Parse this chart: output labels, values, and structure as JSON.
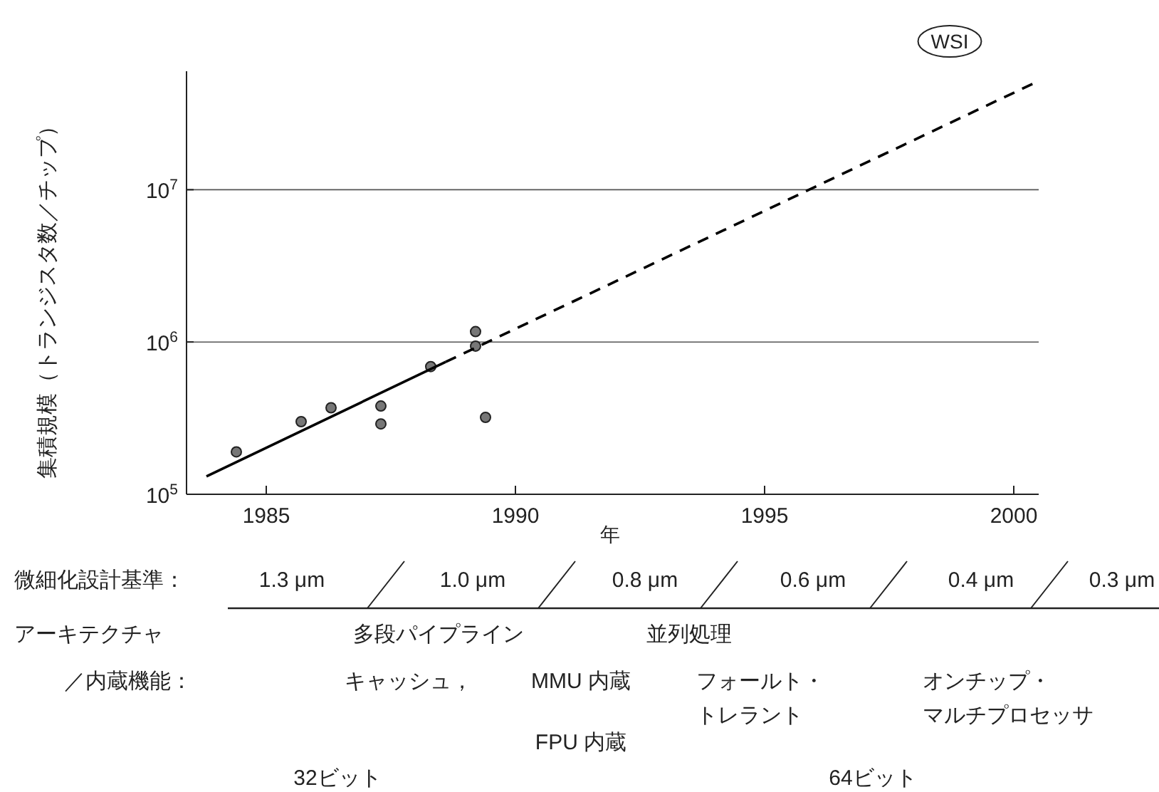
{
  "chart_data": {
    "type": "scatter",
    "xlabel": "年",
    "ylabel": "集積規模（トランジスタ数／チップ）",
    "log": "y",
    "grid": "y",
    "xlim": [
      1983.4,
      2000.5
    ],
    "xticks": [
      1985,
      1990,
      1995,
      2000
    ],
    "ylim": [
      100000,
      60000000
    ],
    "yticks": [
      {
        "value": 100000,
        "label": "10$^{5}$"
      },
      {
        "value": 1000000,
        "label": "10$^{6}$"
      },
      {
        "value": 10000000,
        "label": "10$^{7}$"
      }
    ],
    "series": [
      {
        "marker": "circle",
        "color": "#777777",
        "x": [
          1984.4,
          1985.7,
          1986.3,
          1987.3,
          1987.3,
          1988.3,
          1989.2,
          1989.2,
          1989.4
        ],
        "values": [
          190000,
          300000,
          370000,
          380000,
          290000,
          690000,
          1170000,
          940000,
          320000
        ]
      },
      {
        "type": "line",
        "marker": "none",
        "line_style": "solid",
        "color": "#000000",
        "x": [
          1983.8,
          1988.6
        ],
        "values": [
          131000,
          740000
        ]
      },
      {
        "type": "line",
        "marker": "none",
        "line_style": "dashed",
        "color": "#000000",
        "x": [
          1988.6,
          2000.4
        ],
        "values": [
          740000,
          50000000
        ]
      }
    ],
    "annotations": [
      "WSI",
      "微細化設計基準：",
      "1.3 μm",
      "1.0 μm",
      "0.8 μm",
      "0.6 μm",
      "0.4 μm",
      "0.3 μm",
      "アーキテクチャ",
      "／内蔵機能：",
      "多段パイプライン",
      "並列処理",
      "キャッシュ，",
      "MMU 内蔵",
      "フォールト・",
      "トレラント",
      "オンチップ・",
      "マルチプロセッサ",
      "FPU 内蔵",
      "32ビット",
      "64ビット"
    ]
  }
}
